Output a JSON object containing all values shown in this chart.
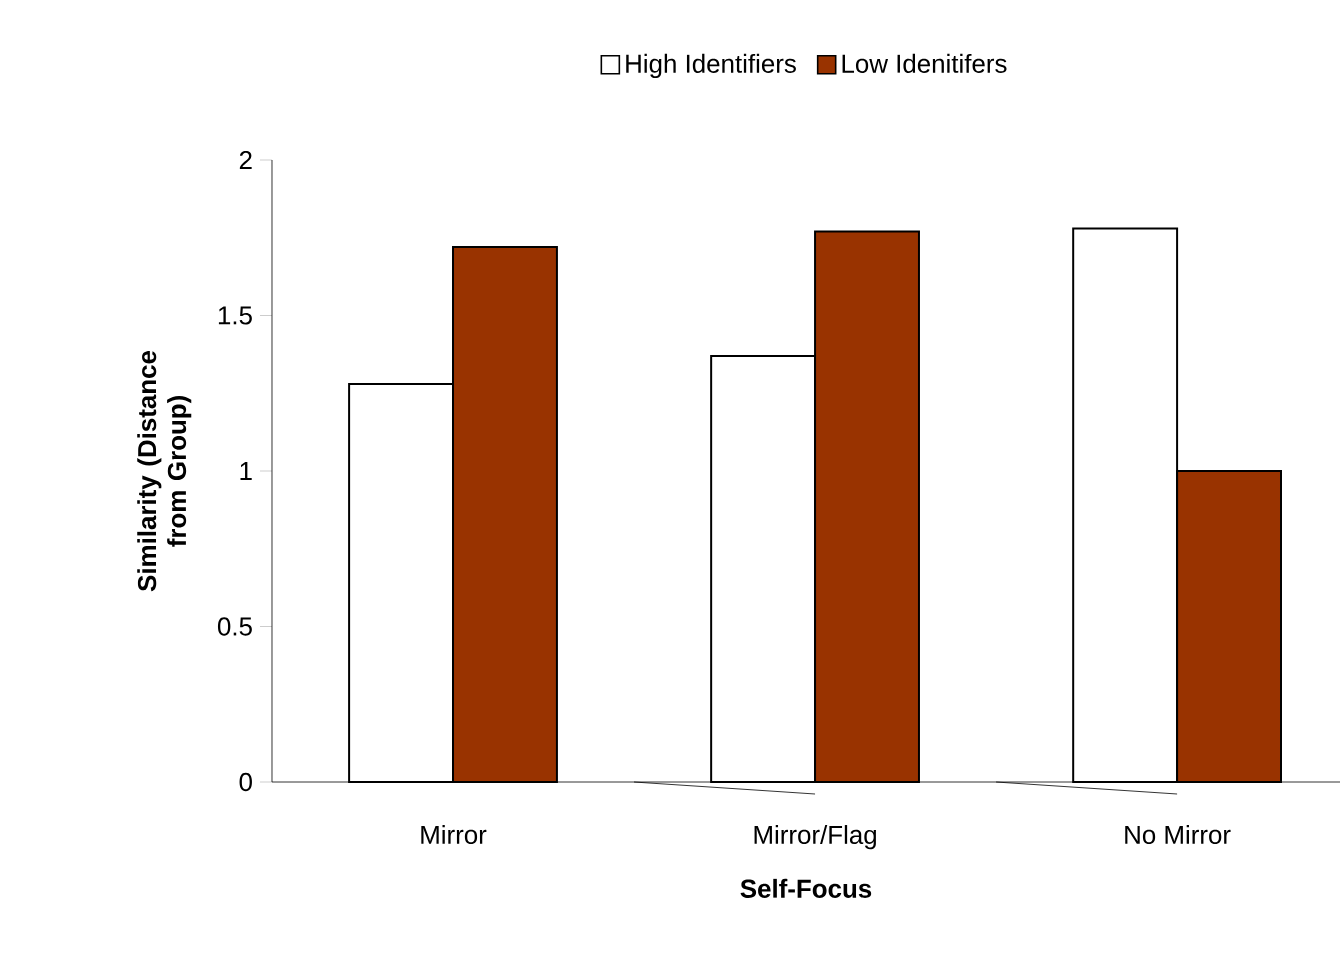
{
  "chart_data": {
    "type": "bar",
    "xlabel": "Self-Focus",
    "ylabel": "Similarity (Distance from Group)",
    "categories": [
      "Mirror",
      "Mirror/Flag",
      "No Mirror"
    ],
    "series": [
      {
        "name": "High Identifiers",
        "color": "#ffffff",
        "values": [
          1.28,
          1.37,
          1.78
        ]
      },
      {
        "name": "Low Idenitifers",
        "color": "#993300",
        "values": [
          1.72,
          1.77,
          1.0
        ]
      }
    ],
    "ylim": [
      0,
      2
    ],
    "yticks": [
      0,
      0.5,
      1,
      1.5,
      2
    ],
    "grid": false,
    "legend": "top"
  }
}
